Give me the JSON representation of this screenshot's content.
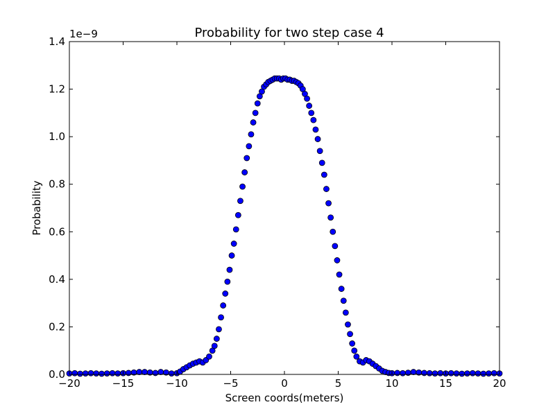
{
  "chart_data": {
    "type": "scatter",
    "title": "Probability for two step case 4",
    "xlabel": "Screen coords(meters)",
    "ylabel": "Probability",
    "y_multiplier_label": "1e−9",
    "xlim": [
      -20,
      20
    ],
    "ylim": [
      0,
      1.4
    ],
    "xticks": [
      -20,
      -15,
      -10,
      -5,
      0,
      5,
      10,
      15,
      20
    ],
    "xtick_labels": [
      "−20",
      "−15",
      "−10",
      "−5",
      "0",
      "5",
      "10",
      "15",
      "20"
    ],
    "yticks": [
      0.0,
      0.2,
      0.4,
      0.6,
      0.8,
      1.0,
      1.2,
      1.4
    ],
    "ytick_labels": [
      "0.0",
      "0.2",
      "0.4",
      "0.6",
      "0.8",
      "1.0",
      "1.2",
      "1.4"
    ],
    "grid": false,
    "marker": "circle",
    "marker_color": "#0000ff",
    "marker_edge_color": "#000000",
    "series": [
      {
        "x": [
          -20,
          -19.5,
          -19,
          -18.5,
          -18,
          -17.5,
          -17,
          -16.5,
          -16,
          -15.5,
          -15,
          -14.5,
          -14,
          -13.5,
          -13,
          -12.5,
          -12,
          -11.5,
          -11,
          -10.5,
          -10,
          -9.7,
          -9.4,
          -9.1,
          -8.8,
          -8.5,
          -8.2,
          -7.9,
          -7.6,
          -7.3,
          -7.0,
          -6.7,
          -6.5,
          -6.3,
          -6.1,
          -5.9,
          -5.7,
          -5.5,
          -5.3,
          -5.1,
          -4.9,
          -4.7,
          -4.5,
          -4.3,
          -4.1,
          -3.9,
          -3.7,
          -3.5,
          -3.3,
          -3.1,
          -2.9,
          -2.7,
          -2.5,
          -2.3,
          -2.1,
          -1.9,
          -1.7,
          -1.5,
          -1.3,
          -1.1,
          -0.9,
          -0.7,
          -0.5,
          -0.3,
          -0.1,
          0.1,
          0.3,
          0.5,
          0.7,
          0.9,
          1.1,
          1.3,
          1.5,
          1.7,
          1.9,
          2.1,
          2.3,
          2.5,
          2.7,
          2.9,
          3.1,
          3.3,
          3.5,
          3.7,
          3.9,
          4.1,
          4.3,
          4.5,
          4.7,
          4.9,
          5.1,
          5.3,
          5.5,
          5.7,
          5.9,
          6.1,
          6.3,
          6.5,
          6.7,
          7.0,
          7.3,
          7.6,
          7.9,
          8.2,
          8.5,
          8.8,
          9.1,
          9.4,
          9.7,
          10,
          10.5,
          11,
          11.5,
          12,
          12.5,
          13,
          13.5,
          14,
          14.5,
          15,
          15.5,
          16,
          16.5,
          17,
          17.5,
          18,
          18.5,
          19,
          19.5,
          20
        ],
        "y": [
          0.004,
          0.005,
          0.003,
          0.004,
          0.005,
          0.004,
          0.003,
          0.004,
          0.005,
          0.004,
          0.005,
          0.006,
          0.008,
          0.01,
          0.01,
          0.008,
          0.006,
          0.01,
          0.008,
          0.004,
          0.005,
          0.012,
          0.022,
          0.03,
          0.038,
          0.045,
          0.05,
          0.055,
          0.05,
          0.06,
          0.075,
          0.1,
          0.12,
          0.15,
          0.19,
          0.24,
          0.29,
          0.34,
          0.39,
          0.44,
          0.5,
          0.55,
          0.61,
          0.67,
          0.73,
          0.79,
          0.85,
          0.91,
          0.96,
          1.01,
          1.06,
          1.1,
          1.14,
          1.17,
          1.19,
          1.21,
          1.22,
          1.23,
          1.235,
          1.24,
          1.245,
          1.245,
          1.245,
          1.24,
          1.245,
          1.245,
          1.24,
          1.24,
          1.235,
          1.235,
          1.23,
          1.225,
          1.215,
          1.2,
          1.18,
          1.16,
          1.13,
          1.1,
          1.07,
          1.03,
          0.99,
          0.94,
          0.89,
          0.84,
          0.78,
          0.72,
          0.66,
          0.6,
          0.54,
          0.48,
          0.42,
          0.36,
          0.31,
          0.26,
          0.21,
          0.17,
          0.13,
          0.1,
          0.075,
          0.055,
          0.05,
          0.06,
          0.055,
          0.045,
          0.035,
          0.025,
          0.015,
          0.01,
          0.006,
          0.005,
          0.006,
          0.005,
          0.007,
          0.01,
          0.008,
          0.006,
          0.005,
          0.004,
          0.005,
          0.004,
          0.005,
          0.004,
          0.003,
          0.004,
          0.005,
          0.004,
          0.003,
          0.004,
          0.005,
          0.004
        ]
      }
    ]
  }
}
